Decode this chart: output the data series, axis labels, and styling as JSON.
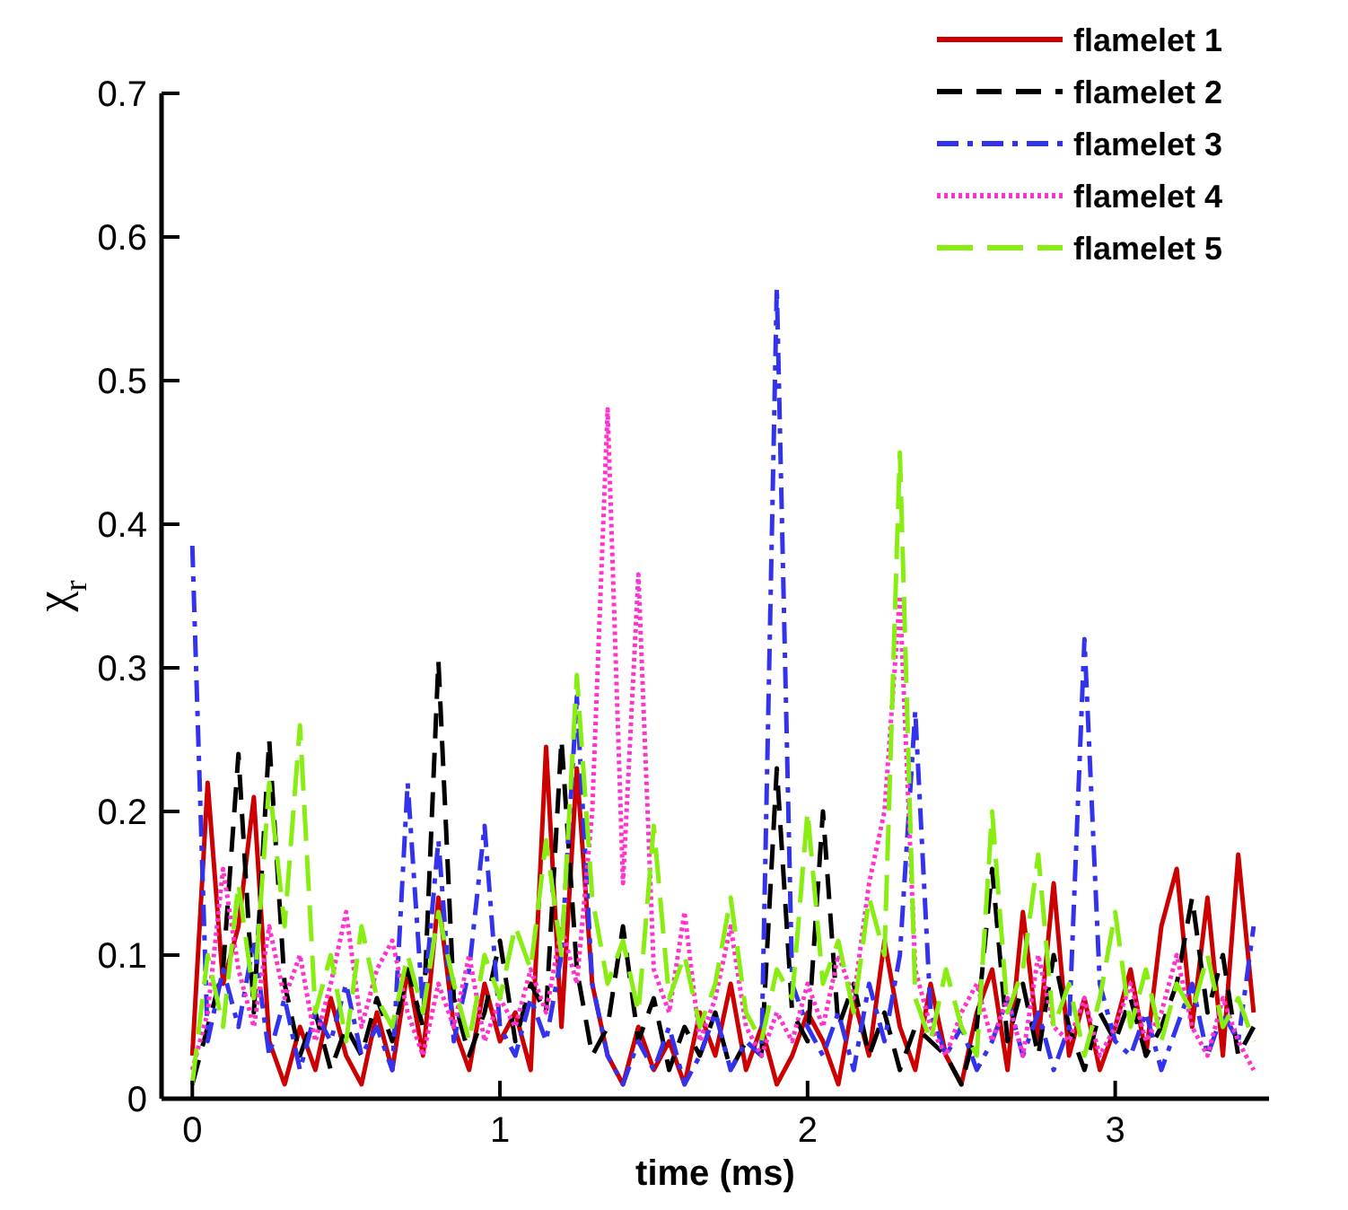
{
  "chart_data": {
    "type": "line",
    "xlabel": "time (ms)",
    "ylabel": "χ$_{r}$",
    "x": [
      0,
      0.05,
      0.1,
      0.15,
      0.2,
      0.25,
      0.3,
      0.35,
      0.4,
      0.45,
      0.5,
      0.55,
      0.6,
      0.65,
      0.7,
      0.75,
      0.8,
      0.85,
      0.9,
      0.95,
      1,
      1.05,
      1.1,
      1.15,
      1.2,
      1.25,
      1.3,
      1.35,
      1.4,
      1.45,
      1.5,
      1.55,
      1.6,
      1.65,
      1.7,
      1.75,
      1.8,
      1.85,
      1.9,
      1.95,
      2,
      2.05,
      2.1,
      2.15,
      2.2,
      2.25,
      2.3,
      2.35,
      2.4,
      2.45,
      2.5,
      2.55,
      2.6,
      2.65,
      2.7,
      2.75,
      2.8,
      2.85,
      2.9,
      2.95,
      3,
      3.05,
      3.1,
      3.15,
      3.2,
      3.25,
      3.3,
      3.35,
      3.4,
      3.45
    ],
    "xlim": [
      -0.1,
      3.5
    ],
    "xticks": [
      0,
      1,
      2,
      3
    ],
    "ylim": [
      0,
      0.7
    ],
    "yticks": [
      0,
      0.1,
      0.2,
      0.3,
      0.4,
      0.5,
      0.6,
      0.7
    ],
    "legend": "top right",
    "grid": false,
    "series": [
      {
        "name": "flamelet 1",
        "color": "#cc0000",
        "line_style": "solid",
        "values": [
          0.03,
          0.22,
          0.08,
          0.12,
          0.21,
          0.04,
          0.01,
          0.05,
          0.02,
          0.07,
          0.03,
          0.01,
          0.06,
          0.02,
          0.09,
          0.03,
          0.14,
          0.05,
          0.02,
          0.08,
          0.04,
          0.06,
          0.02,
          0.245,
          0.05,
          0.23,
          0.08,
          0.03,
          0.01,
          0.05,
          0.02,
          0.04,
          0.01,
          0.06,
          0.03,
          0.08,
          0.02,
          0.05,
          0.01,
          0.03,
          0.06,
          0.04,
          0.01,
          0.07,
          0.03,
          0.11,
          0.05,
          0.02,
          0.08,
          0.03,
          0.01,
          0.06,
          0.09,
          0.02,
          0.13,
          0.04,
          0.15,
          0.03,
          0.07,
          0.02,
          0.05,
          0.09,
          0.03,
          0.12,
          0.16,
          0.05,
          0.14,
          0.03,
          0.17,
          0.06
        ]
      },
      {
        "name": "flamelet 2",
        "color": "#000000",
        "line_style": "dashed",
        "values": [
          0.01,
          0.05,
          0.09,
          0.24,
          0.06,
          0.25,
          0.08,
          0.03,
          0.06,
          0.02,
          0.05,
          0.03,
          0.07,
          0.04,
          0.09,
          0.05,
          0.305,
          0.07,
          0.03,
          0.06,
          0.11,
          0.04,
          0.08,
          0.06,
          0.25,
          0.09,
          0.03,
          0.05,
          0.12,
          0.04,
          0.07,
          0.02,
          0.05,
          0.03,
          0.06,
          0.02,
          0.04,
          0.03,
          0.23,
          0.06,
          0.04,
          0.2,
          0.05,
          0.08,
          0.03,
          0.06,
          0.02,
          0.05,
          0.04,
          0.03,
          0.01,
          0.05,
          0.16,
          0.04,
          0.08,
          0.03,
          0.1,
          0.05,
          0.02,
          0.06,
          0.04,
          0.07,
          0.03,
          0.05,
          0.08,
          0.14,
          0.06,
          0.1,
          0.03,
          0.05
        ]
      },
      {
        "name": "flamelet 3",
        "color": "#3333ee",
        "line_style": "dashdot",
        "values": [
          0.385,
          0.04,
          0.09,
          0.05,
          0.11,
          0.03,
          0.07,
          0.02,
          0.06,
          0.04,
          0.08,
          0.03,
          0.05,
          0.02,
          0.22,
          0.06,
          0.18,
          0.04,
          0.09,
          0.19,
          0.05,
          0.03,
          0.07,
          0.04,
          0.1,
          0.28,
          0.08,
          0.03,
          0.01,
          0.04,
          0.02,
          0.05,
          0.01,
          0.03,
          0.06,
          0.02,
          0.04,
          0.03,
          0.565,
          0.08,
          0.05,
          0.03,
          0.06,
          0.02,
          0.08,
          0.04,
          0.1,
          0.27,
          0.06,
          0.03,
          0.05,
          0.02,
          0.04,
          0.07,
          0.03,
          0.06,
          0.02,
          0.05,
          0.32,
          0.08,
          0.04,
          0.03,
          0.06,
          0.02,
          0.05,
          0.08,
          0.03,
          0.06,
          0.04,
          0.12
        ]
      },
      {
        "name": "flamelet 4",
        "color": "#ff33cc",
        "line_style": "dotted",
        "values": [
          0.02,
          0.06,
          0.16,
          0.09,
          0.05,
          0.12,
          0.07,
          0.1,
          0.04,
          0.08,
          0.13,
          0.05,
          0.09,
          0.11,
          0.06,
          0.03,
          0.08,
          0.05,
          0.1,
          0.04,
          0.07,
          0.05,
          0.09,
          0.06,
          0.12,
          0.08,
          0.2,
          0.48,
          0.15,
          0.365,
          0.09,
          0.06,
          0.13,
          0.04,
          0.07,
          0.12,
          0.05,
          0.03,
          0.06,
          0.04,
          0.08,
          0.05,
          0.1,
          0.07,
          0.15,
          0.2,
          0.35,
          0.09,
          0.05,
          0.03,
          0.06,
          0.08,
          0.04,
          0.07,
          0.03,
          0.1,
          0.05,
          0.04,
          0.07,
          0.03,
          0.05,
          0.08,
          0.04,
          0.06,
          0.1,
          0.05,
          0.03,
          0.07,
          0.04,
          0.02
        ]
      },
      {
        "name": "flamelet 5",
        "color": "#88ee11",
        "line_style": "longdash",
        "values": [
          0.01,
          0.1,
          0.05,
          0.15,
          0.07,
          0.22,
          0.12,
          0.26,
          0.06,
          0.1,
          0.04,
          0.12,
          0.07,
          0.05,
          0.1,
          0.06,
          0.13,
          0.08,
          0.04,
          0.1,
          0.07,
          0.12,
          0.09,
          0.18,
          0.1,
          0.295,
          0.14,
          0.08,
          0.11,
          0.06,
          0.19,
          0.07,
          0.1,
          0.05,
          0.08,
          0.14,
          0.06,
          0.04,
          0.09,
          0.07,
          0.2,
          0.08,
          0.11,
          0.06,
          0.14,
          0.1,
          0.45,
          0.07,
          0.04,
          0.09,
          0.05,
          0.03,
          0.2,
          0.06,
          0.09,
          0.17,
          0.05,
          0.08,
          0.03,
          0.07,
          0.13,
          0.05,
          0.09,
          0.04,
          0.08,
          0.06,
          0.1,
          0.05,
          0.07,
          0.04
        ]
      }
    ]
  }
}
